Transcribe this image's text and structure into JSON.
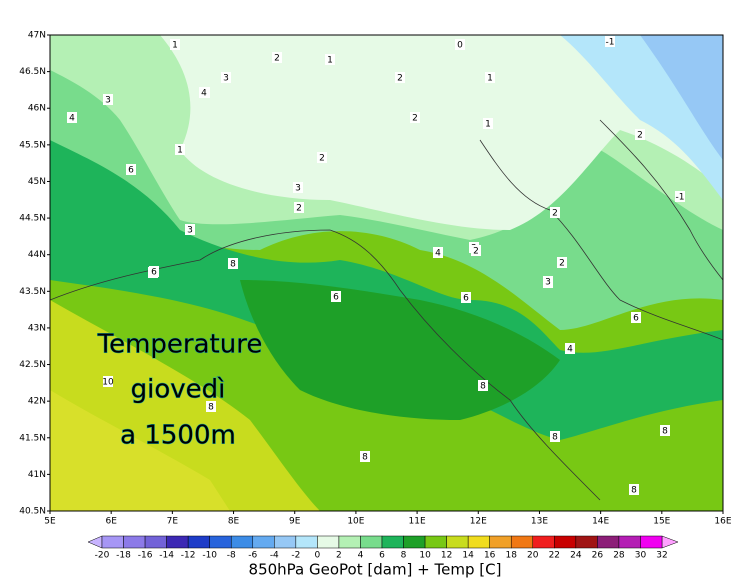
{
  "map": {
    "lat_labels": [
      "47N",
      "46.5N",
      "46N",
      "45.5N",
      "45N",
      "44.5N",
      "44N",
      "43.5N",
      "43N",
      "42.5N",
      "42N",
      "41.5N",
      "41N",
      "40.5N"
    ],
    "lon_labels": [
      "5E",
      "6E",
      "7E",
      "8E",
      "9E",
      "10E",
      "11E",
      "12E",
      "13E",
      "14E",
      "15E",
      "16E"
    ],
    "overlay_text": [
      "Temperature",
      "giovedì",
      "a 1500m"
    ],
    "contour_labels": [
      "1",
      "2",
      "1",
      "0",
      "1",
      "-1",
      "3",
      "2",
      "2",
      "1",
      "4",
      "3",
      "2",
      "1",
      "2",
      "2",
      "4",
      "6",
      "3",
      "2",
      "2",
      "3",
      "-1",
      "3",
      "4",
      "2",
      "2",
      "2",
      "6",
      "8",
      "6",
      "6",
      "6",
      "3",
      "4",
      "6",
      "10",
      "8",
      "8",
      "8",
      "8",
      "8",
      "8",
      "6"
    ],
    "colorbar_labels": [
      -20,
      -18,
      -16,
      -14,
      -12,
      -10,
      -8,
      -6,
      -4,
      -2,
      0,
      2,
      4,
      6,
      8,
      10,
      12,
      14,
      16,
      18,
      20,
      22,
      24,
      26,
      28,
      30,
      32
    ],
    "colorbar_colors": [
      "#a696f5",
      "#8c7ae8",
      "#7262d8",
      "#3c28b4",
      "#1e3cc8",
      "#2864dc",
      "#3c8ce6",
      "#64aaf0",
      "#96c8f5",
      "#b4e6fa",
      "#e6fae6",
      "#b4f0b4",
      "#78dc8c",
      "#1eb45a",
      "#1ea028",
      "#78c814",
      "#c8dc1e",
      "#f0dc1e",
      "#f0a028",
      "#f07814",
      "#f01e1e",
      "#c80000",
      "#a01414",
      "#8c1e78",
      "#b41eb4",
      "#f000f0"
    ],
    "caption": "850hPa GeoPot [dam] + Temp [C]"
  }
}
